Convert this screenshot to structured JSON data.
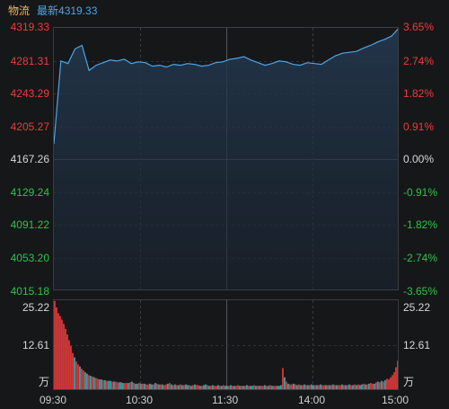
{
  "header": {
    "symbol": "物流",
    "last_label": "最新",
    "last_value": "4319.33"
  },
  "price_axis": [
    {
      "price": "4319.33",
      "pct": "3.65%",
      "cls": "red"
    },
    {
      "price": "4281.31",
      "pct": "2.74%",
      "cls": "red"
    },
    {
      "price": "4243.29",
      "pct": "1.82%",
      "cls": "red"
    },
    {
      "price": "4205.27",
      "pct": "0.91%",
      "cls": "red"
    },
    {
      "price": "4167.26",
      "pct": "0.00%",
      "cls": "white"
    },
    {
      "price": "4129.24",
      "pct": "-0.91%",
      "cls": "green"
    },
    {
      "price": "4091.22",
      "pct": "-1.82%",
      "cls": "green"
    },
    {
      "price": "4053.20",
      "pct": "-2.74%",
      "cls": "green"
    },
    {
      "price": "4015.18",
      "pct": "-3.65%",
      "cls": "green"
    }
  ],
  "volume_axis": {
    "max": "25.22",
    "mid": "12.61",
    "unit": "万"
  },
  "time_axis": [
    "09:30",
    "10:30",
    "11:30",
    "14:00",
    "15:00"
  ],
  "colors": {
    "line": "#4ca6e8",
    "up": "#ef3b3b",
    "down": "#2fc24a",
    "flat": "#d8d8d8",
    "vol_up": "#ff4040",
    "vol_down": "#39c0c8"
  },
  "chart_data": [
    {
      "type": "line",
      "title": "",
      "xlabel": "",
      "ylabel": "",
      "x": [
        "09:30",
        "09:33",
        "09:36",
        "09:40",
        "09:45",
        "09:50",
        "09:55",
        "10:00",
        "10:05",
        "10:10",
        "10:15",
        "10:20",
        "10:25",
        "10:30",
        "10:35",
        "10:40",
        "10:45",
        "10:50",
        "10:55",
        "11:00",
        "11:05",
        "11:10",
        "11:15",
        "11:20",
        "11:25",
        "11:30",
        "13:05",
        "13:10",
        "13:15",
        "13:20",
        "13:25",
        "13:30",
        "13:35",
        "13:40",
        "13:45",
        "13:50",
        "13:55",
        "14:00",
        "14:05",
        "14:10",
        "14:15",
        "14:20",
        "14:25",
        "14:30",
        "14:35",
        "14:40",
        "14:45",
        "14:50",
        "14:55",
        "15:00"
      ],
      "series": [
        {
          "values": [
            4185,
            4281,
            4278,
            4295,
            4299,
            4270,
            4276,
            4279,
            4282,
            4281,
            4283,
            4278,
            4280,
            4279,
            4275,
            4276,
            4274,
            4277,
            4276,
            4278,
            4277,
            4275,
            4276,
            4279,
            4280,
            4283,
            4284,
            4286,
            4282,
            4279,
            4276,
            4278,
            4281,
            4280,
            4277,
            4276,
            4279,
            4278,
            4277,
            4282,
            4287,
            4290,
            4291,
            4292,
            4296,
            4299,
            4303,
            4306,
            4310,
            4319
          ]
        }
      ],
      "ylim": [
        4015.18,
        4319.33
      ],
      "baseline": 4167.26
    },
    {
      "type": "bar",
      "title": "",
      "ylabel": "万",
      "ylim": [
        0,
        25.22
      ],
      "values": [
        25.0,
        23.2,
        21.6,
        20.8,
        19.8,
        18.6,
        17.2,
        15.6,
        14.0,
        12.4,
        10.4,
        9.2,
        8.0,
        7.2,
        6.6,
        6.0,
        5.5,
        5.0,
        4.6,
        4.2,
        4.0,
        3.8,
        3.6,
        3.4,
        3.2,
        3.0,
        3.0,
        2.8,
        2.8,
        2.6,
        2.6,
        2.6,
        2.4,
        2.4,
        2.4,
        2.2,
        2.2,
        2.2,
        2.0,
        2.0,
        2.0,
        2.0,
        2.2,
        2.4,
        2.0,
        1.8,
        1.8,
        2.0,
        1.8,
        1.8,
        1.8,
        1.6,
        1.6,
        1.8,
        1.6,
        1.6,
        2.0,
        1.8,
        1.6,
        1.6,
        1.6,
        1.4,
        1.6,
        1.8,
        2.0,
        1.6,
        1.4,
        1.6,
        1.4,
        1.4,
        1.6,
        1.4,
        1.4,
        1.6,
        1.4,
        1.4,
        1.2,
        1.4,
        1.6,
        1.4,
        1.4,
        1.2,
        1.2,
        1.4,
        1.6,
        1.4,
        1.2,
        1.2,
        1.4,
        1.2,
        1.2,
        1.4,
        1.2,
        1.2,
        1.4,
        1.2,
        1.2,
        1.2,
        1.4,
        1.2,
        1.2,
        1.2,
        1.4,
        1.2,
        1.2,
        1.2,
        1.2,
        1.4,
        1.2,
        1.2,
        1.2,
        1.4,
        1.2,
        1.2,
        1.2,
        1.2,
        1.2,
        1.4,
        1.2,
        1.2,
        1.4,
        1.2,
        1.2,
        1.2,
        1.2,
        1.2,
        1.4,
        6.2,
        3.6,
        2.4,
        1.8,
        1.6,
        1.6,
        1.8,
        1.6,
        1.4,
        1.6,
        1.4,
        1.4,
        1.6,
        1.4,
        1.4,
        1.4,
        1.6,
        1.4,
        1.4,
        1.4,
        1.4,
        1.6,
        1.4,
        1.4,
        1.4,
        1.4,
        1.4,
        1.4,
        1.6,
        1.4,
        1.4,
        1.4,
        1.4,
        1.6,
        1.4,
        1.4,
        1.4,
        1.6,
        1.4,
        1.4,
        1.6,
        1.4,
        1.6,
        1.4,
        1.6,
        1.8,
        1.6,
        1.6,
        1.8,
        2.0,
        1.8,
        1.8,
        2.2,
        2.4,
        2.2,
        2.6,
        2.4,
        2.8,
        3.2,
        3.0,
        3.6,
        4.2,
        5.0,
        6.4,
        8.2
      ],
      "dir": "rrrrrrrrrrrcrrcrrccrcrcrrccrcrccrcrrcccrrcrcrccrcrcrrccrcrcrcrrcrcrcrcrcrccrcrcrrcrccrcrcrrcrcrccrcrcrrcrcrcrccrcrcrrcrcrcrrcccrcrcrrcrcrcrcrcrccrcrcrrcrcrcrcrrcrcrcrcrcrccrcrcrrcrcrcrcrrrrrrrr"
    }
  ]
}
